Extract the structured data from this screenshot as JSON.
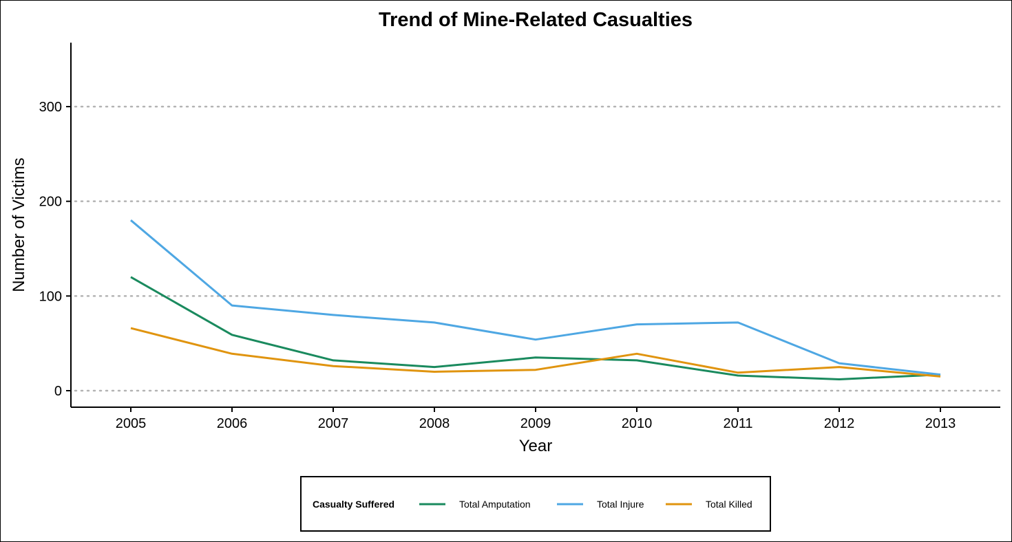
{
  "chart_data": {
    "type": "line",
    "title": "Trend of Mine-Related Casualties",
    "xlabel": "Year",
    "ylabel": "Number of Victims",
    "x": [
      2005,
      2006,
      2007,
      2008,
      2009,
      2010,
      2011,
      2012,
      2013
    ],
    "x_tick_labels": [
      "2005",
      "2006",
      "2007",
      "2008",
      "2009",
      "2010",
      "2011",
      "2012",
      "2013"
    ],
    "y_ticks": [
      0,
      100,
      200,
      300
    ],
    "y_tick_labels": [
      "0",
      "100",
      "200",
      "300"
    ],
    "ylim": [
      -17,
      367
    ],
    "grid": "horizontal dotted major",
    "legend": {
      "title": "Casualty Suffered",
      "placement": "bottom"
    },
    "series": [
      {
        "name": "Total Amputation",
        "color": "#1a8a5e",
        "values": [
          120,
          59,
          32,
          25,
          35,
          32,
          16,
          12,
          17
        ]
      },
      {
        "name": "Total Injure",
        "color": "#4ea7e3",
        "values": [
          180,
          90,
          80,
          72,
          54,
          70,
          72,
          29,
          17
        ]
      },
      {
        "name": "Total Killed",
        "color": "#e0940f",
        "values": [
          66,
          39,
          26,
          20,
          22,
          39,
          19,
          25,
          15
        ]
      }
    ]
  }
}
